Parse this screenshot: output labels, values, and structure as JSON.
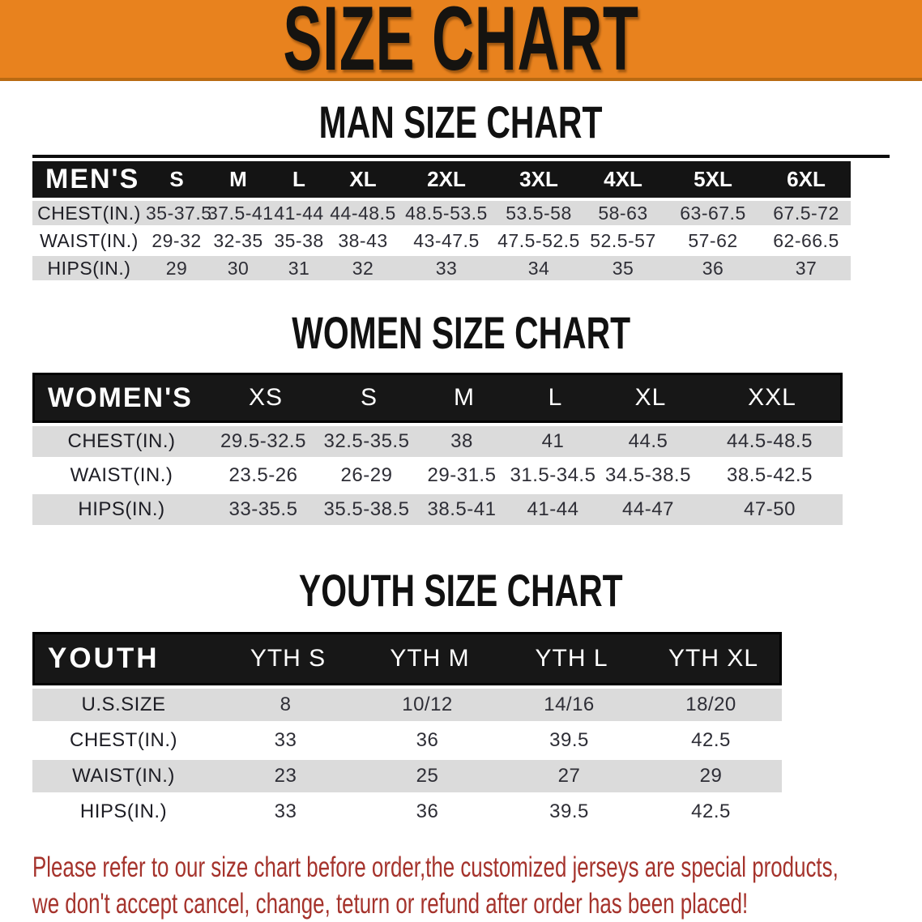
{
  "banner": {
    "title": "SIZE CHART"
  },
  "colors": {
    "orange": "#E8821E",
    "orange_dark": "#B96A12",
    "bar_black": "#141414",
    "row_gray": "#DBDBDB",
    "red": "#A5332C"
  },
  "sections": {
    "men": {
      "heading": "MAN SIZE CHART"
    },
    "women": {
      "heading": "WOMEN SIZE CHART"
    },
    "youth": {
      "heading": "YOUTH SIZE CHART"
    }
  },
  "tables": {
    "men": {
      "label": "MEN'S",
      "sizes": [
        "S",
        "M",
        "L",
        "XL",
        "2XL",
        "3XL",
        "4XL",
        "5XL",
        "6XL"
      ],
      "rows": [
        {
          "label": "CHEST(IN.)",
          "values": [
            "35-37.5",
            "37.5-41",
            "41-44",
            "44-48.5",
            "48.5-53.5",
            "53.5-58",
            "58-63",
            "63-67.5",
            "67.5-72"
          ]
        },
        {
          "label": "WAIST(IN.)",
          "values": [
            "29-32",
            "32-35",
            "35-38",
            "38-43",
            "43-47.5",
            "47.5-52.5",
            "52.5-57",
            "57-62",
            "62-66.5"
          ]
        },
        {
          "label": "HIPS(IN.)",
          "values": [
            "29",
            "30",
            "31",
            "32",
            "33",
            "34",
            "35",
            "36",
            "37"
          ]
        }
      ]
    },
    "women": {
      "label": "WOMEN'S",
      "sizes": [
        "XS",
        "S",
        "M",
        "L",
        "XL",
        "XXL"
      ],
      "rows": [
        {
          "label": "CHEST(IN.)",
          "values": [
            "29.5-32.5",
            "32.5-35.5",
            "38",
            "41",
            "44.5",
            "44.5-48.5"
          ]
        },
        {
          "label": "WAIST(IN.)",
          "values": [
            "23.5-26",
            "26-29",
            "29-31.5",
            "31.5-34.5",
            "34.5-38.5",
            "38.5-42.5"
          ]
        },
        {
          "label": "HIPS(IN.)",
          "values": [
            "33-35.5",
            "35.5-38.5",
            "38.5-41",
            "41-44",
            "44-47",
            "47-50"
          ]
        }
      ]
    },
    "youth": {
      "label": "YOUTH",
      "sizes": [
        "YTH S",
        "YTH M",
        "YTH L",
        "YTH XL"
      ],
      "rows": [
        {
          "label": "U.S.SIZE",
          "values": [
            "8",
            "10/12",
            "14/16",
            "18/20"
          ]
        },
        {
          "label": "CHEST(IN.)",
          "values": [
            "33",
            "36",
            "39.5",
            "42.5"
          ]
        },
        {
          "label": "WAIST(IN.)",
          "values": [
            "23",
            "25",
            "27",
            "29"
          ]
        },
        {
          "label": "HIPS(IN.)",
          "values": [
            "33",
            "36",
            "39.5",
            "42.5"
          ]
        }
      ]
    }
  },
  "footer": {
    "line1": "Please refer to our size chart before order,the customized jerseys are special products,",
    "line2": "we don't accept cancel, change, teturn or refund after order has been placed!"
  }
}
